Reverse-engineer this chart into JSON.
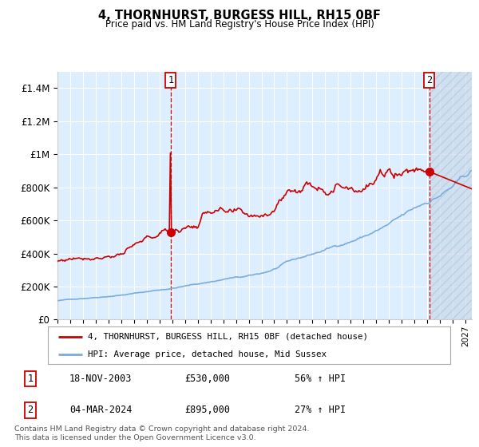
{
  "title": "4, THORNHURST, BURGESS HILL, RH15 0BF",
  "subtitle": "Price paid vs. HM Land Registry's House Price Index (HPI)",
  "ylim": [
    0,
    1500000
  ],
  "xlim_start": 1995.0,
  "xlim_end": 2027.5,
  "background_color": "#ddeeff",
  "fig_bg_color": "#ffffff",
  "grid_color": "#ffffff",
  "red_line_color": "#cc0000",
  "blue_line_color": "#7aaddd",
  "sale1_x": 2003.88,
  "sale1_y": 530000,
  "sale2_x": 2024.17,
  "sale2_y": 895000,
  "legend_label_red": "4, THORNHURST, BURGESS HILL, RH15 0BF (detached house)",
  "legend_label_blue": "HPI: Average price, detached house, Mid Sussex",
  "table_row1": [
    "1",
    "18-NOV-2003",
    "£530,000",
    "56% ↑ HPI"
  ],
  "table_row2": [
    "2",
    "04-MAR-2024",
    "£895,000",
    "27% ↑ HPI"
  ],
  "footer": "Contains HM Land Registry data © Crown copyright and database right 2024.\nThis data is licensed under the Open Government Licence v3.0.",
  "future_start": 2024.17,
  "ytick_labels": [
    "£0",
    "£200K",
    "£400K",
    "£600K",
    "£800K",
    "£1M",
    "£1.2M",
    "£1.4M"
  ],
  "ytick_values": [
    0,
    200000,
    400000,
    600000,
    800000,
    1000000,
    1200000,
    1400000
  ]
}
